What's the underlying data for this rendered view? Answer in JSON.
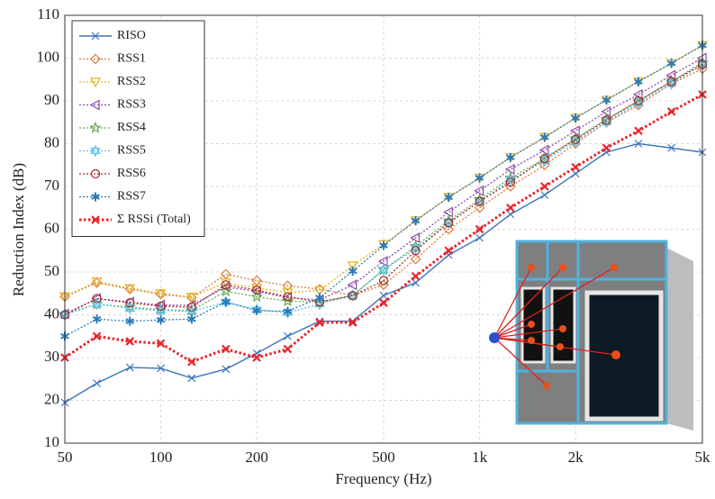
{
  "chart_data": {
    "type": "line",
    "xlabel": "Frequency (Hz)",
    "ylabel": "Reduction Index (dB)",
    "x": [
      50,
      63,
      80,
      100,
      125,
      160,
      200,
      250,
      315,
      400,
      500,
      630,
      800,
      1000,
      1250,
      1600,
      2000,
      2500,
      3150,
      4000,
      5000
    ],
    "xlim": [
      50,
      5000
    ],
    "xscale": "log",
    "xticks": [
      50,
      100,
      200,
      500,
      {
        "value": 1000,
        "label": "1k"
      },
      {
        "value": 2000,
        "label": "2k"
      },
      {
        "value": 5000,
        "label": "5k"
      }
    ],
    "ylim": [
      10,
      110
    ],
    "yticks": [
      10,
      20,
      30,
      40,
      50,
      60,
      70,
      80,
      90,
      100,
      110
    ],
    "grid": true,
    "legend": "top-left",
    "series": [
      {
        "name": "RISO",
        "color": "#3b72b8",
        "marker": "x",
        "style": "solid",
        "values": [
          19.5,
          24,
          27.7,
          27.5,
          25.2,
          27.3,
          31,
          35,
          38.5,
          38.5,
          44.5,
          47.5,
          54,
          58,
          63.5,
          68,
          73,
          78,
          80,
          79,
          78
        ]
      },
      {
        "name": "RSS1",
        "color": "#e07b39",
        "marker": "diamond",
        "style": "dotted",
        "values": [
          44.2,
          47.5,
          46,
          44.8,
          44,
          49.5,
          48,
          46.8,
          46,
          44.5,
          47,
          53,
          60,
          65,
          70,
          75,
          80,
          85,
          89,
          94,
          97.5
        ]
      },
      {
        "name": "RSS2",
        "color": "#e3b21f",
        "marker": "tri-down",
        "style": "dotted",
        "values": [
          44.3,
          47.8,
          46.2,
          45,
          44.2,
          47.5,
          46.3,
          45.2,
          45.7,
          51.5,
          56.5,
          62,
          67.5,
          72,
          76.8,
          81.5,
          86,
          90.2,
          94.5,
          98.8,
          103
        ]
      },
      {
        "name": "RSS3",
        "color": "#8a4aa8",
        "marker": "tri-left",
        "style": "dotted",
        "values": [
          40.2,
          43.8,
          43,
          42.3,
          42.2,
          46.5,
          45.5,
          44,
          43.5,
          47,
          52.5,
          58,
          64,
          69,
          74,
          78.5,
          83,
          87.5,
          91.5,
          96,
          100
        ]
      },
      {
        "name": "RSS4",
        "color": "#6aa84f",
        "marker": "star",
        "style": "dotted",
        "values": [
          40.2,
          42.5,
          41.8,
          41.2,
          41,
          45.5,
          44.2,
          43.2,
          43,
          44.5,
          50.5,
          56,
          62,
          67,
          72,
          76.5,
          81.2,
          85.7,
          90,
          94.5,
          99
        ]
      },
      {
        "name": "RSS5",
        "color": "#5bc0eb",
        "marker": "hexagram",
        "style": "dotted",
        "values": [
          40,
          42.5,
          41.5,
          41,
          40.8,
          43,
          41.2,
          40.5,
          42.5,
          44.5,
          50.5,
          55.5,
          61.5,
          66.5,
          71.5,
          76,
          80.5,
          85,
          89.5,
          94,
          98.5
        ]
      },
      {
        "name": "RSS6",
        "color": "#a52a2a",
        "marker": "circle",
        "style": "dotted",
        "values": [
          40,
          43.8,
          42.8,
          42,
          41.8,
          47,
          45.8,
          44.2,
          43,
          44.5,
          48,
          55,
          61.5,
          66.5,
          71,
          76.5,
          81,
          85.5,
          90,
          94.5,
          98.5
        ]
      },
      {
        "name": "RSS7",
        "color": "#2b7bba",
        "marker": "asterisk",
        "style": "dotted",
        "values": [
          35,
          39,
          38.5,
          38.8,
          39,
          43,
          41,
          40.8,
          44,
          50.2,
          56.2,
          62,
          67.5,
          72,
          76.8,
          81.5,
          86,
          90.2,
          94.5,
          98.8,
          103
        ]
      },
      {
        "name": "Σ RSSi (Total)",
        "color": "#e8232a",
        "marker": "x",
        "style": "thick-dotted",
        "values": [
          30,
          35,
          33.8,
          33.3,
          29,
          32,
          30,
          32,
          38.2,
          38.2,
          42.8,
          49,
          55,
          60,
          65,
          70,
          74.5,
          79,
          83,
          87.5,
          91.5
        ]
      }
    ]
  }
}
